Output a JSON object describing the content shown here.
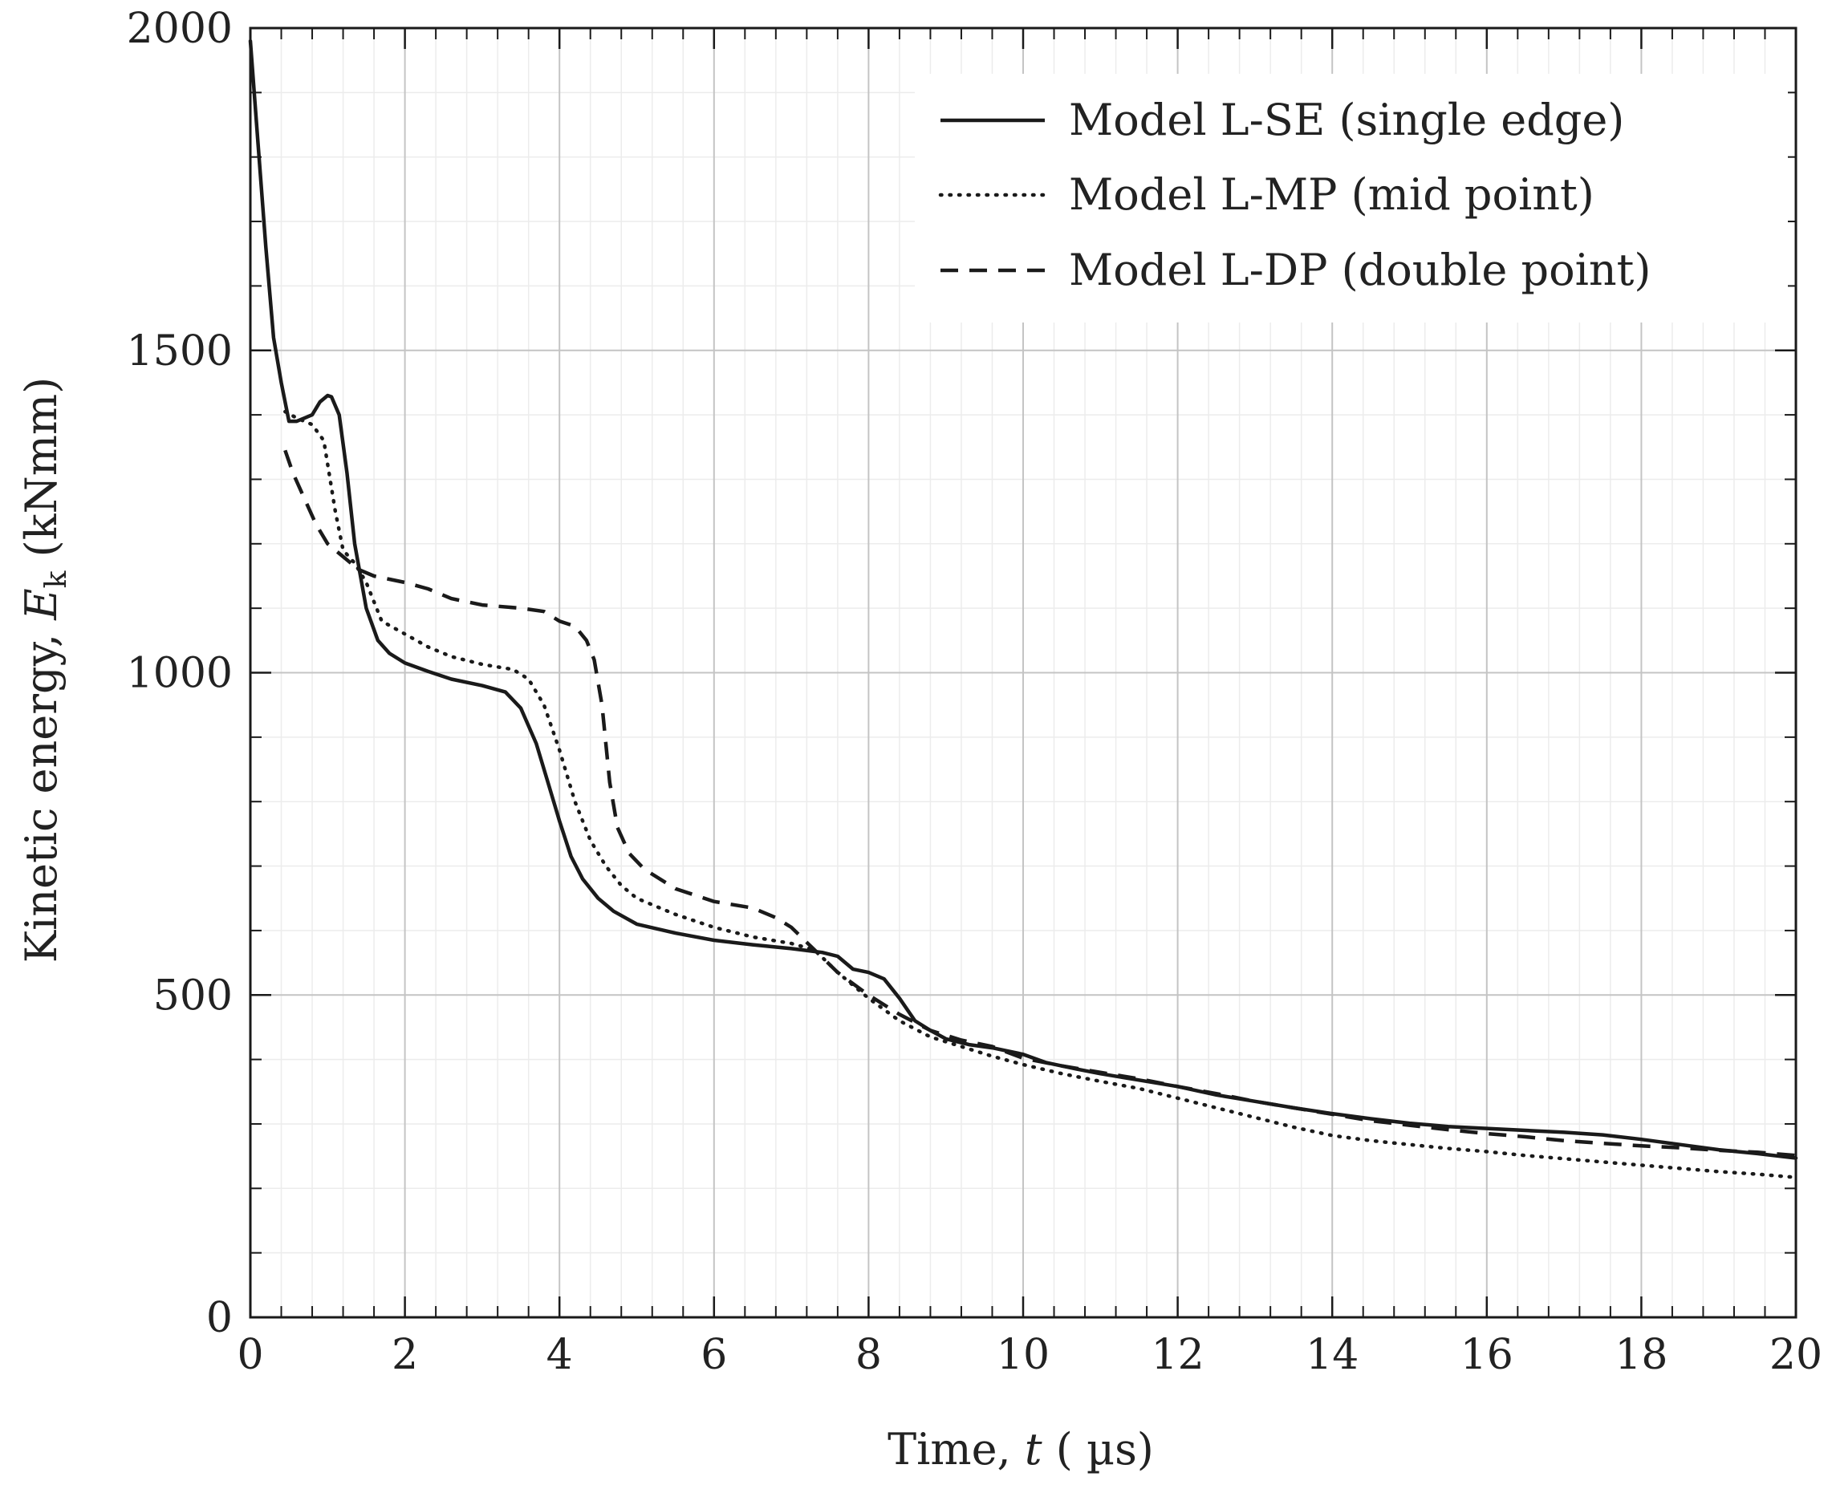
{
  "chart_data": {
    "type": "line",
    "title": "",
    "xlabel_prefix": "Time, ",
    "xlabel_var": "t",
    "xlabel_unit": " ( µs)",
    "ylabel_prefix": "Kinetic energy, ",
    "ylabel_var": "E",
    "ylabel_sub": "k",
    "ylabel_unit": " (kNmm)",
    "xlim": [
      0,
      20
    ],
    "ylim": [
      0,
      2000
    ],
    "x_ticks": [
      "0",
      "2",
      "4",
      "6",
      "8",
      "10",
      "12",
      "14",
      "16",
      "18",
      "20"
    ],
    "y_ticks": [
      "0",
      "500",
      "1000",
      "1500",
      "2000"
    ],
    "grid": true,
    "legend_position": "top-right",
    "series": [
      {
        "name": "Model L-SE (single edge)",
        "style": "solid",
        "color": "#1a1a1a",
        "points": [
          [
            0,
            1980
          ],
          [
            0.1,
            1820
          ],
          [
            0.2,
            1660
          ],
          [
            0.3,
            1520
          ],
          [
            0.4,
            1450
          ],
          [
            0.5,
            1390
          ],
          [
            0.6,
            1390
          ],
          [
            0.8,
            1400
          ],
          [
            0.9,
            1420
          ],
          [
            1.0,
            1430
          ],
          [
            1.05,
            1428
          ],
          [
            1.15,
            1400
          ],
          [
            1.25,
            1310
          ],
          [
            1.35,
            1200
          ],
          [
            1.5,
            1100
          ],
          [
            1.65,
            1050
          ],
          [
            1.8,
            1030
          ],
          [
            2.0,
            1015
          ],
          [
            2.3,
            1002
          ],
          [
            2.6,
            990
          ],
          [
            3.0,
            980
          ],
          [
            3.3,
            970
          ],
          [
            3.5,
            945
          ],
          [
            3.7,
            890
          ],
          [
            3.85,
            830
          ],
          [
            4.0,
            770
          ],
          [
            4.15,
            715
          ],
          [
            4.3,
            680
          ],
          [
            4.5,
            650
          ],
          [
            4.7,
            630
          ],
          [
            5.0,
            610
          ],
          [
            5.5,
            596
          ],
          [
            6.0,
            585
          ],
          [
            6.5,
            578
          ],
          [
            7.0,
            572
          ],
          [
            7.4,
            566
          ],
          [
            7.6,
            560
          ],
          [
            7.8,
            540
          ],
          [
            8.0,
            535
          ],
          [
            8.2,
            525
          ],
          [
            8.4,
            495
          ],
          [
            8.6,
            460
          ],
          [
            8.8,
            445
          ],
          [
            9.0,
            432
          ],
          [
            9.3,
            423
          ],
          [
            9.6,
            418
          ],
          [
            10.0,
            408
          ],
          [
            10.3,
            395
          ],
          [
            10.7,
            385
          ],
          [
            11.0,
            378
          ],
          [
            11.5,
            368
          ],
          [
            12.0,
            358
          ],
          [
            12.5,
            345
          ],
          [
            13.0,
            335
          ],
          [
            13.5,
            325
          ],
          [
            14.0,
            316
          ],
          [
            14.5,
            308
          ],
          [
            15.0,
            301
          ],
          [
            15.5,
            296
          ],
          [
            16.0,
            293
          ],
          [
            16.5,
            290
          ],
          [
            17.0,
            287
          ],
          [
            17.5,
            283
          ],
          [
            18.0,
            276
          ],
          [
            18.5,
            268
          ],
          [
            19.0,
            260
          ],
          [
            19.5,
            254
          ],
          [
            20.0,
            247
          ]
        ]
      },
      {
        "name": "Model L-MP (mid point)",
        "style": "dotted",
        "color": "#1a1a1a",
        "points": [
          [
            0.45,
            1405
          ],
          [
            0.6,
            1395
          ],
          [
            0.8,
            1385
          ],
          [
            0.95,
            1360
          ],
          [
            1.1,
            1250
          ],
          [
            1.2,
            1190
          ],
          [
            1.35,
            1170
          ],
          [
            1.5,
            1140
          ],
          [
            1.7,
            1080
          ],
          [
            2.0,
            1060
          ],
          [
            2.3,
            1040
          ],
          [
            2.6,
            1025
          ],
          [
            3.0,
            1013
          ],
          [
            3.4,
            1005
          ],
          [
            3.6,
            990
          ],
          [
            3.8,
            950
          ],
          [
            4.0,
            880
          ],
          [
            4.2,
            800
          ],
          [
            4.4,
            740
          ],
          [
            4.6,
            700
          ],
          [
            4.8,
            670
          ],
          [
            5.0,
            650
          ],
          [
            5.5,
            625
          ],
          [
            6.0,
            605
          ],
          [
            6.5,
            590
          ],
          [
            7.0,
            580
          ],
          [
            7.3,
            570
          ],
          [
            7.6,
            535
          ],
          [
            8.0,
            495
          ],
          [
            8.4,
            460
          ],
          [
            8.8,
            435
          ],
          [
            9.2,
            420
          ],
          [
            9.6,
            405
          ],
          [
            10.0,
            392
          ],
          [
            10.5,
            378
          ],
          [
            11.0,
            366
          ],
          [
            11.5,
            355
          ],
          [
            12.0,
            340
          ],
          [
            12.5,
            325
          ],
          [
            13.0,
            310
          ],
          [
            13.5,
            295
          ],
          [
            14.0,
            282
          ],
          [
            14.5,
            274
          ],
          [
            15.0,
            268
          ],
          [
            15.5,
            262
          ],
          [
            16.0,
            257
          ],
          [
            16.5,
            251
          ],
          [
            17.0,
            246
          ],
          [
            17.5,
            241
          ],
          [
            18.0,
            236
          ],
          [
            18.5,
            231
          ],
          [
            19.0,
            226
          ],
          [
            19.5,
            222
          ],
          [
            20.0,
            217
          ]
        ]
      },
      {
        "name": "Model L-DP (double point)",
        "style": "dashed",
        "color": "#1a1a1a",
        "points": [
          [
            0.45,
            1345
          ],
          [
            0.55,
            1310
          ],
          [
            0.7,
            1270
          ],
          [
            0.85,
            1230
          ],
          [
            1.0,
            1200
          ],
          [
            1.2,
            1180
          ],
          [
            1.4,
            1160
          ],
          [
            1.6,
            1150
          ],
          [
            1.8,
            1145
          ],
          [
            2.0,
            1140
          ],
          [
            2.3,
            1130
          ],
          [
            2.6,
            1115
          ],
          [
            3.0,
            1105
          ],
          [
            3.5,
            1100
          ],
          [
            3.8,
            1095
          ],
          [
            4.0,
            1080
          ],
          [
            4.2,
            1072
          ],
          [
            4.35,
            1050
          ],
          [
            4.45,
            1020
          ],
          [
            4.55,
            950
          ],
          [
            4.65,
            830
          ],
          [
            4.75,
            760
          ],
          [
            4.9,
            720
          ],
          [
            5.1,
            695
          ],
          [
            5.5,
            665
          ],
          [
            6.0,
            645
          ],
          [
            6.5,
            635
          ],
          [
            6.8,
            620
          ],
          [
            7.0,
            605
          ],
          [
            7.3,
            570
          ],
          [
            7.6,
            535
          ],
          [
            8.0,
            500
          ],
          [
            8.4,
            470
          ],
          [
            8.8,
            445
          ],
          [
            9.2,
            430
          ],
          [
            9.6,
            420
          ],
          [
            10.0,
            402
          ],
          [
            10.5,
            390
          ],
          [
            11.0,
            380
          ],
          [
            11.5,
            370
          ],
          [
            12.0,
            358
          ],
          [
            12.5,
            347
          ],
          [
            13.0,
            335
          ],
          [
            13.5,
            325
          ],
          [
            14.0,
            315
          ],
          [
            14.5,
            305
          ],
          [
            15.0,
            298
          ],
          [
            15.5,
            291
          ],
          [
            16.0,
            285
          ],
          [
            16.5,
            280
          ],
          [
            17.0,
            274
          ],
          [
            17.5,
            270
          ],
          [
            18.0,
            266
          ],
          [
            18.5,
            263
          ],
          [
            19.0,
            259
          ],
          [
            19.5,
            256
          ],
          [
            20.0,
            251
          ]
        ]
      }
    ]
  }
}
